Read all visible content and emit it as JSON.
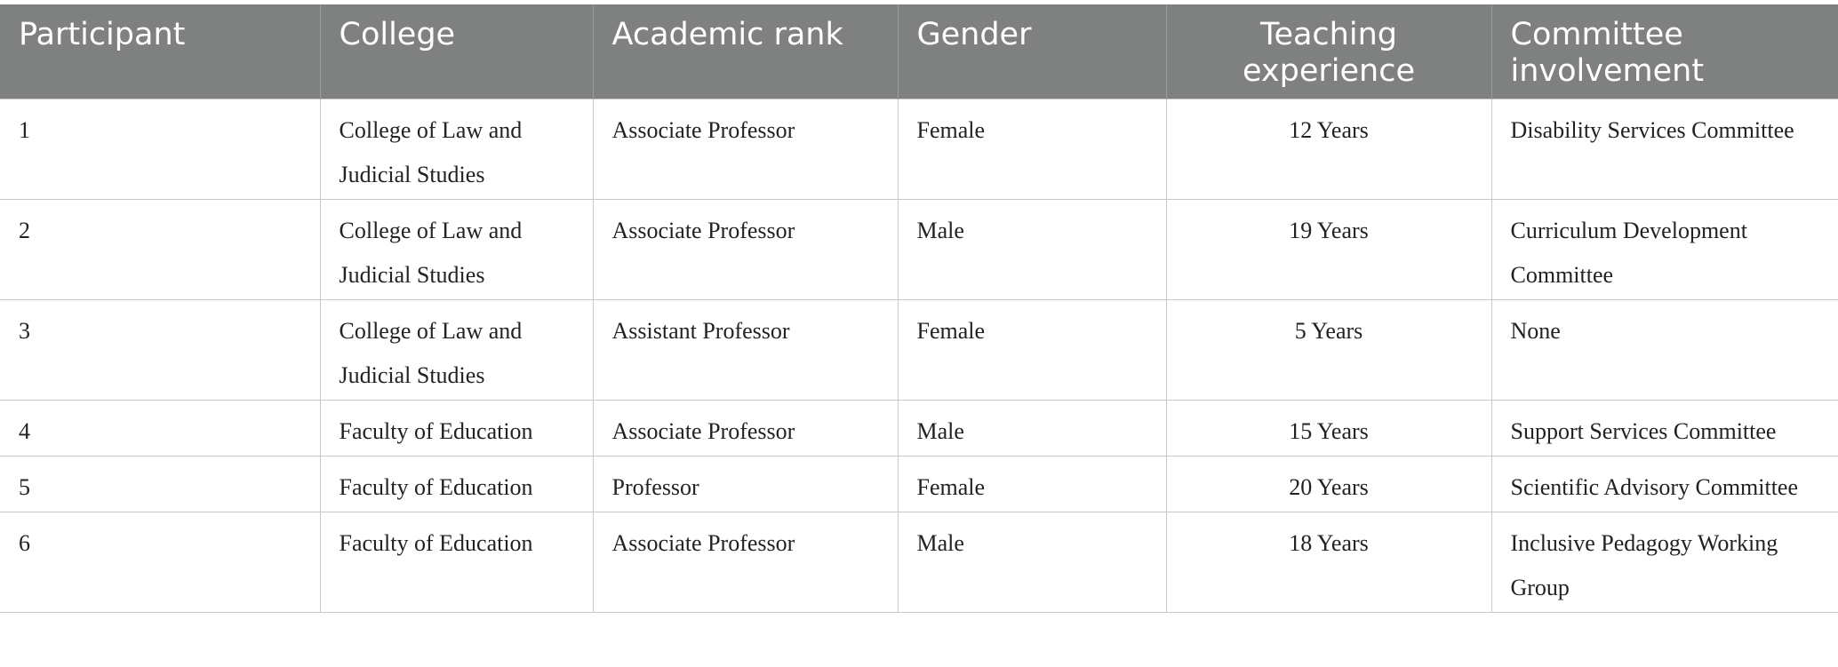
{
  "table": {
    "headers": [
      "Participant",
      "College",
      "Academic rank",
      "Gender",
      "Teaching experience",
      "Committee involvement"
    ],
    "rows": [
      [
        "1",
        "College of Law and Judicial Studies",
        "Associate Professor",
        "Female",
        "12 Years",
        "Disability Services Committee"
      ],
      [
        "2",
        "College of Law and Judicial Studies",
        "Associate Professor",
        "Male",
        "19 Years",
        "Curriculum Development Committee"
      ],
      [
        "3",
        "College of Law and Judicial Studies",
        "Assistant Professor",
        "Female",
        "5 Years",
        "None"
      ],
      [
        "4",
        "Faculty of Education",
        "Associate Professor",
        "Male",
        "15 Years",
        "Support Services Committee"
      ],
      [
        "5",
        "Faculty of Education",
        "Professor",
        "Female",
        "20 Years",
        "Scientific Advisory Committee"
      ],
      [
        "6",
        "Faculty of Education",
        "Associate Professor",
        "Male",
        "18 Years",
        "Inclusive Pedagogy Working Group"
      ]
    ]
  }
}
